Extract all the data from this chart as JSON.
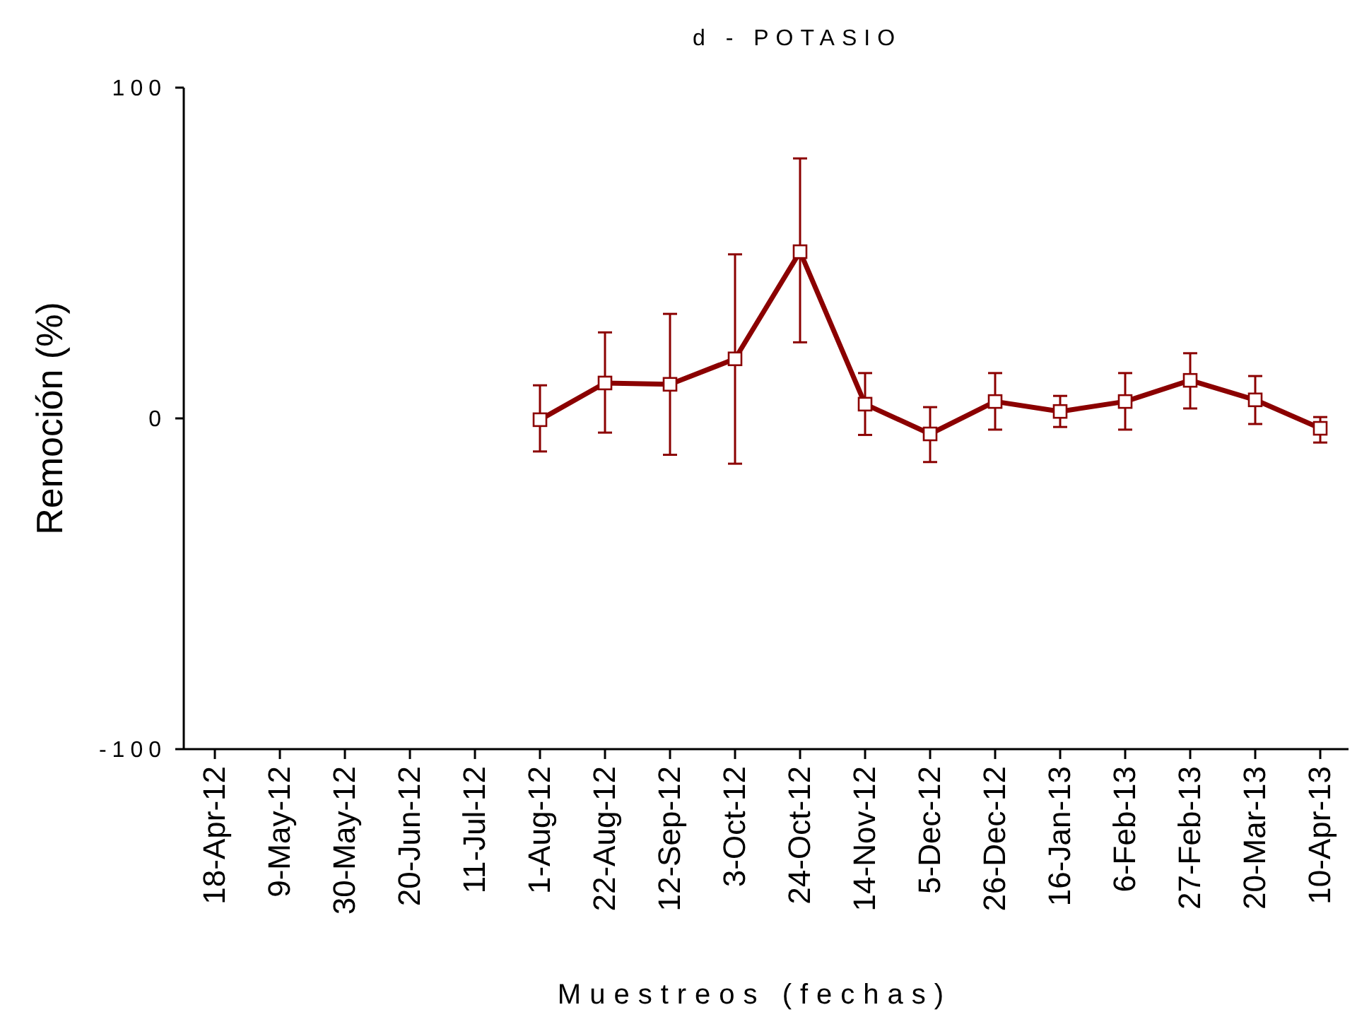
{
  "chart_data": {
    "type": "line",
    "title": "d - POTASIO",
    "xlabel": "Muestreos (fechas)",
    "ylabel": "Remoción (%)",
    "categories": [
      "18-Apr-12",
      "9-May-12",
      "30-May-12",
      "20-Jun-12",
      "11-Jul-12",
      "1-Aug-12",
      "22-Aug-12",
      "12-Sep-12",
      "3-Oct-12",
      "24-Oct-12",
      "14-Nov-12",
      "5-Dec-12",
      "26-Dec-12",
      "16-Jan-13",
      "6-Feb-13",
      "27-Feb-13",
      "20-Mar-13",
      "10-Apr-13"
    ],
    "series": [
      {
        "color": "#8b0000",
        "values": [
          null,
          null,
          null,
          null,
          null,
          -0.4,
          10.7,
          10.3,
          18,
          50.4,
          4.3,
          -4.7,
          5.1,
          2.1,
          5.1,
          11.5,
          5.6,
          -3
        ],
        "errors": [
          null,
          null,
          null,
          null,
          null,
          [
            -10,
            10
          ],
          [
            -4.3,
            26
          ],
          [
            -11,
            31.6
          ],
          [
            -13.7,
            49.6
          ],
          [
            23,
            78.6
          ],
          [
            -5,
            13.7
          ],
          [
            -13.2,
            3.4
          ],
          [
            -3.4,
            13.7
          ],
          [
            -2.6,
            6.8
          ],
          [
            -3.4,
            13.7
          ],
          [
            3,
            19.7
          ],
          [
            -1.7,
            12.8
          ],
          [
            -7.3,
            0.4
          ]
        ]
      }
    ],
    "ylim": [
      -100,
      100
    ],
    "yticks": [
      -100,
      0,
      100
    ],
    "grid": false,
    "marker": "square",
    "line_style": "solid"
  }
}
